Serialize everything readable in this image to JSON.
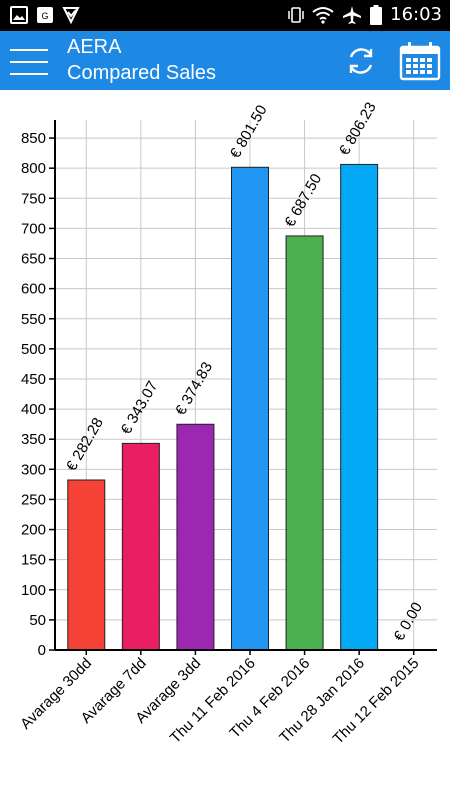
{
  "app": {
    "name": "AERA",
    "subtitle": "Compared Sales"
  },
  "status_bar": {
    "time": "16:03"
  },
  "icons": {
    "menu": "hamburger-menu-icon",
    "refresh": "refresh-icon",
    "calendar": "calendar-icon"
  },
  "colors": {
    "app_bar": "#1e88e5",
    "status_bar": "#000000"
  },
  "chart_data": {
    "type": "bar",
    "categories": [
      "Avarage 30dd",
      "Avarage 7dd",
      "Avarage 3dd",
      "Thu 11 Feb 2016",
      "Thu 4 Feb 2016",
      "Thu 28 Jan 2016",
      "Thu 12 Feb 2015"
    ],
    "values": [
      282.28,
      343.07,
      374.83,
      801.5,
      687.5,
      806.23,
      0.0
    ],
    "value_labels": [
      "€ 282.28",
      "€ 343.07",
      "€ 374.83",
      "€ 801.50",
      "€ 687.50",
      "€ 806.23",
      "€ 0.00"
    ],
    "colors": [
      "#f44336",
      "#e91e63",
      "#9c27b0",
      "#2196f3",
      "#4caf50",
      "#03a9f4",
      "#607d8b"
    ],
    "ylim": [
      0,
      880
    ],
    "yticks": [
      0,
      50,
      100,
      150,
      200,
      250,
      300,
      350,
      400,
      450,
      500,
      550,
      600,
      650,
      700,
      750,
      800,
      850
    ],
    "grid": true
  }
}
